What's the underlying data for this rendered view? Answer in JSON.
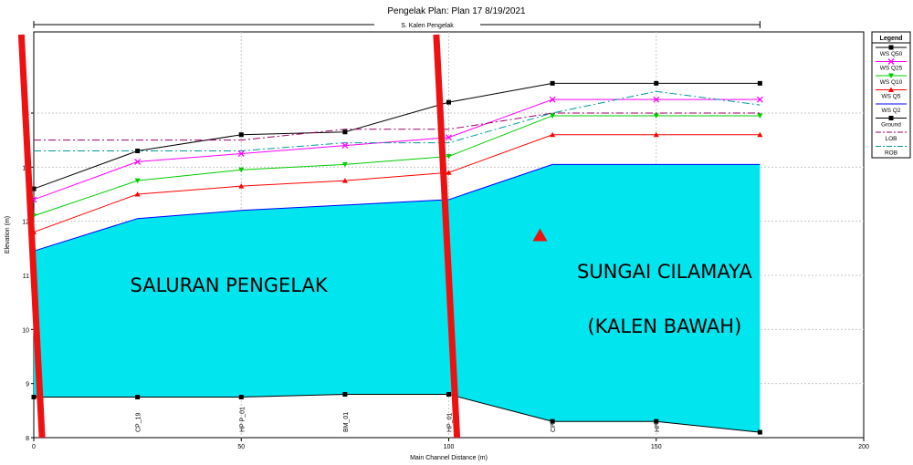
{
  "chart_data": {
    "type": "line",
    "title": "Pengelak      Plan: Plan 17    8/19/2021",
    "subtitle": "S. Kalen Pengelak",
    "xlabel": "Main Channel Distance (m)",
    "ylabel": "Elevation (m)",
    "xlim": [
      0,
      200
    ],
    "ylim": [
      8,
      15.5
    ],
    "x_ticks": [
      "0",
      "50",
      "100",
      "150",
      "200"
    ],
    "y_ticks": [
      "8",
      "9",
      "10",
      "11",
      "12",
      "13",
      "14"
    ],
    "grid": true,
    "legend_title": "Legend",
    "legend_position": "right",
    "x": [
      0,
      25,
      50,
      75,
      100,
      125,
      150,
      175
    ],
    "section_labels": [
      "CP_19",
      "HP P_01",
      "BM_01",
      "HP_01",
      "CP",
      "HP"
    ],
    "section_label_x": [
      25,
      50,
      75,
      100,
      125,
      150
    ],
    "series": [
      {
        "name": "WS  Q50",
        "color": "#000000",
        "marker": "square",
        "values": [
          12.6,
          13.3,
          13.6,
          13.65,
          14.2,
          14.55,
          14.55,
          14.55
        ]
      },
      {
        "name": "WS  Q25",
        "color": "#ff00ff",
        "marker": "x",
        "values": [
          12.4,
          13.1,
          13.25,
          13.4,
          13.55,
          14.25,
          14.25,
          14.25
        ]
      },
      {
        "name": "WS  Q10",
        "color": "#00cc00",
        "marker": "triangle-down",
        "values": [
          12.1,
          12.75,
          12.95,
          13.05,
          13.2,
          13.95,
          13.95,
          13.95
        ]
      },
      {
        "name": "WS  Q5",
        "color": "#ff0000",
        "marker": "triangle-up",
        "values": [
          11.8,
          12.5,
          12.65,
          12.75,
          12.9,
          13.6,
          13.6,
          13.6
        ]
      },
      {
        "name": "WS  Q2",
        "color": "#0000ff",
        "marker": "none",
        "values": [
          11.45,
          12.05,
          12.2,
          12.3,
          12.4,
          13.05,
          13.05,
          13.05
        ]
      },
      {
        "name": "Ground",
        "color": "#000000",
        "marker": "square",
        "values": [
          8.75,
          8.75,
          8.75,
          8.8,
          8.8,
          8.3,
          8.3,
          8.1
        ]
      },
      {
        "name": "LOB",
        "color": "#990066",
        "marker": "none",
        "dash": "dashdot",
        "values": [
          13.5,
          13.5,
          13.5,
          13.7,
          13.7,
          14.0,
          14.0,
          14.0
        ]
      },
      {
        "name": "ROB",
        "color": "#009999",
        "marker": "none",
        "dash": "dashdot",
        "values": [
          13.3,
          13.3,
          13.3,
          13.45,
          13.45,
          14.0,
          14.4,
          14.15
        ]
      }
    ],
    "water_fill_color": "#00e5ee",
    "annotations": [
      "SALURAN PENGELAK",
      "SUNGAI CILAMAYA",
      "(KALEN BAWAH)"
    ],
    "red_marker_position": [
      122,
      11.75
    ],
    "red_divider_lines": [
      {
        "x_top": -3,
        "y_top": 15.45,
        "x_bottom": 2,
        "y_bottom": 8
      },
      {
        "x_top": 97,
        "y_top": 15.45,
        "x_bottom": 102,
        "y_bottom": 8
      }
    ]
  }
}
